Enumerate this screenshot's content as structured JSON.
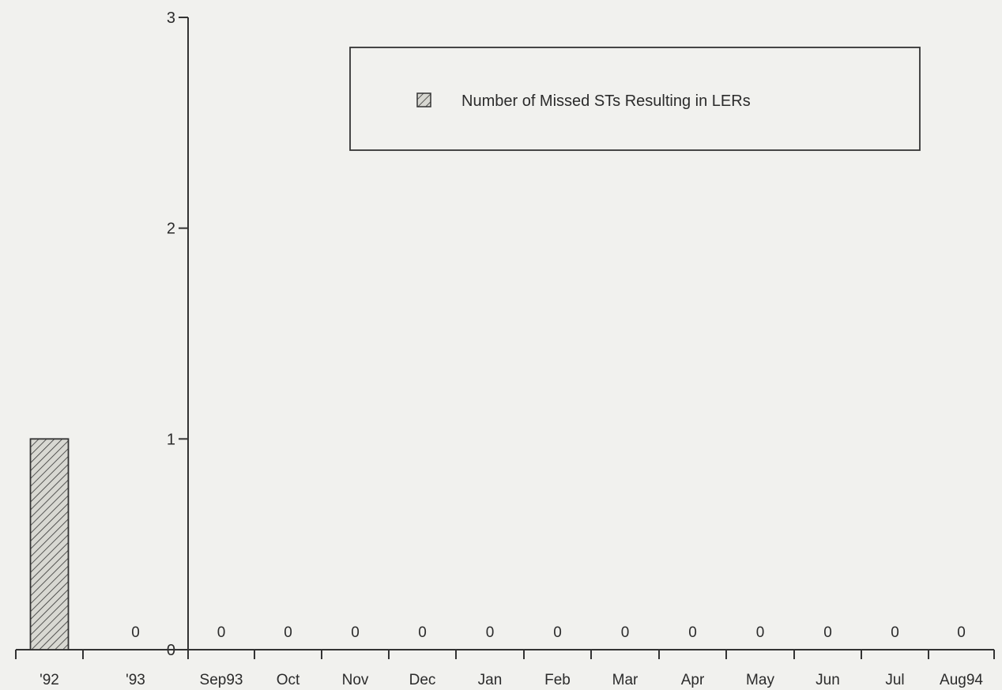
{
  "chart_data": {
    "type": "bar",
    "categories": [
      "'92",
      "'93",
      "Sep93",
      "Oct",
      "Nov",
      "Dec",
      "Jan",
      "Feb",
      "Mar",
      "Apr",
      "May",
      "Jun",
      "Jul",
      "Aug94"
    ],
    "series": [
      {
        "name": "Number of Missed STs Resulting in LERs",
        "values": [
          1,
          0,
          0,
          0,
          0,
          0,
          0,
          0,
          0,
          0,
          0,
          0,
          0,
          0
        ]
      }
    ],
    "data_labels": [
      "",
      "0",
      "0",
      "0",
      "0",
      "0",
      "0",
      "0",
      "0",
      "0",
      "0",
      "0",
      "0",
      "0"
    ],
    "ylim": [
      0,
      3
    ],
    "yticks": [
      "0",
      "1",
      "2",
      "3"
    ],
    "legend": {
      "label": "Number of Missed STs Resulting in LERs",
      "placement": "top-right"
    },
    "grid": false,
    "bar_pattern": "diagonal-hatch",
    "colors": {
      "bar_fill": "#d8d8d2",
      "hatch": "#333333",
      "axis": "#333333"
    }
  }
}
